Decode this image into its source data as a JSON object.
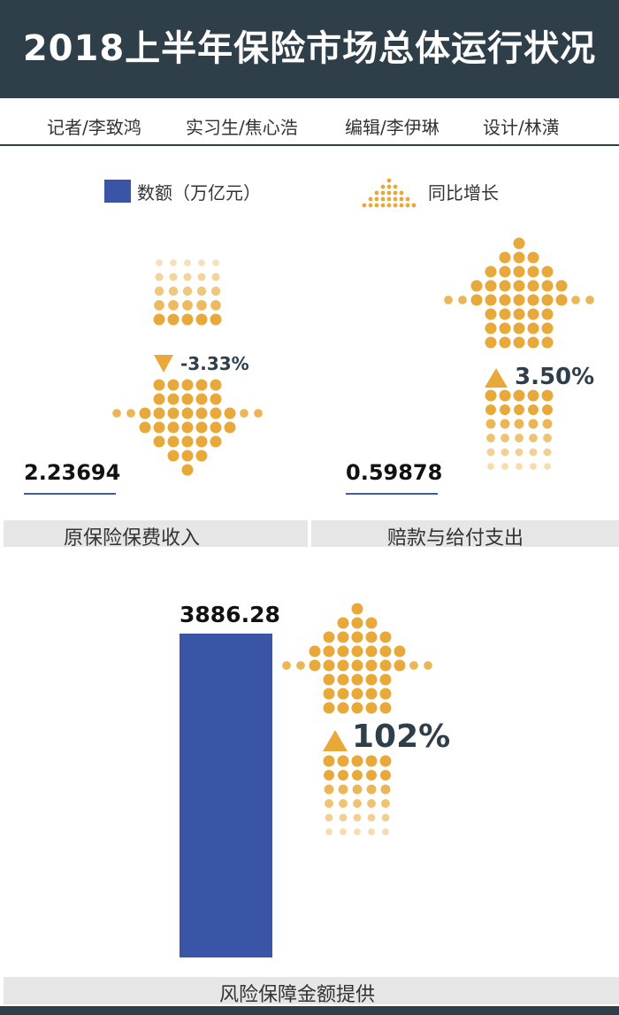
{
  "title": "2018上半年保险市场总体运行状况",
  "credits": [
    "记者/李致鸿",
    "实习生/焦心浩",
    "编辑/李伊琳",
    "设计/林潢"
  ],
  "legend": {
    "amount_label": "数额（万亿元）",
    "growth_label": "同比增长",
    "amount_color": "#3b55a6",
    "growth_color": "#e8a93a"
  },
  "chart_data": [
    {
      "type": "bar",
      "categories": [
        "原保险保费收入"
      ],
      "values": [
        2.23694
      ],
      "value_labels": [
        "2.23694"
      ],
      "yoy_growth": [
        -3.33
      ],
      "yoy_labels": [
        "-3.33%"
      ],
      "growth_direction": "down"
    },
    {
      "type": "bar",
      "categories": [
        "赔款与给付支出"
      ],
      "values": [
        0.59878
      ],
      "value_labels": [
        "0.59878"
      ],
      "yoy_growth": [
        3.5
      ],
      "yoy_labels": [
        "3.50%"
      ],
      "growth_direction": "up"
    },
    {
      "type": "bar",
      "categories": [
        "风险保障金额提供"
      ],
      "values": [
        3886.28
      ],
      "value_labels": [
        "3886.28"
      ],
      "yoy_growth": [
        102
      ],
      "yoy_labels": [
        "102%"
      ],
      "growth_direction": "up"
    }
  ]
}
